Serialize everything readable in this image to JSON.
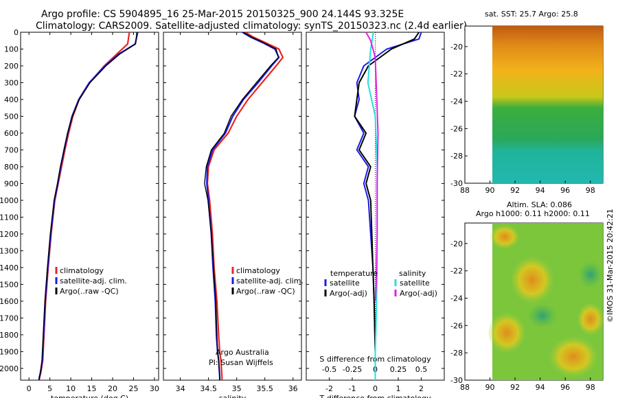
{
  "header": {
    "title_line1": "Argo profile: CS 5904895_16 25-Mar-2015 20150325_900 24.144S 93.325E",
    "title_line2": "Climatology: CARS2009. Satellite-adjusted climatology: synTS_20150323.nc (2.4d earlier)"
  },
  "panel_titles": {
    "sst": "sat. SST: 25.7 Argo: 25.8",
    "sla_line1": "Altim. SLA: 0.086",
    "sla_line2": "Argo h1000: 0.11 h2000: 0.11"
  },
  "credit": "©IMOS 31-Mar-2015 20:42:21",
  "colors": {
    "climatology": "#e8261c",
    "satellite": "#1a1ae6",
    "argo": "#000000",
    "sat_salinity": "#22e0e0",
    "argo_salinity": "#e020e0"
  },
  "chart_data": [
    {
      "type": "line",
      "xlabel": "temperature (deg C)",
      "ylabel": "",
      "xlim": [
        -2,
        31
      ],
      "ylim": [
        2070,
        0
      ],
      "xticks": [
        0,
        5,
        10,
        15,
        20,
        25,
        30
      ],
      "yticks": [
        0,
        100,
        200,
        300,
        400,
        500,
        600,
        700,
        800,
        900,
        1000,
        1100,
        1200,
        1300,
        1400,
        1500,
        1600,
        1700,
        1800,
        1900,
        2000
      ],
      "legend": [
        "climatology",
        "satellite-adj. clim.",
        "Argo(..raw -QC)"
      ],
      "series": [
        {
          "name": "climatology",
          "x": [
            24,
            23.6,
            21,
            18,
            14.5,
            12,
            10.5,
            9.5,
            8.6,
            7.8,
            7,
            6.2,
            5.3,
            4.6,
            4,
            3.6,
            3.3,
            3,
            2.8,
            2.6,
            2.4
          ],
          "y": [
            0,
            70,
            130,
            200,
            300,
            400,
            500,
            600,
            700,
            800,
            900,
            1000,
            1200,
            1400,
            1600,
            1800,
            1950,
            2000,
            2030,
            2050,
            2070
          ]
        },
        {
          "name": "satellite-adj. clim.",
          "x": [
            26,
            25.4,
            21.5,
            18.2,
            14.4,
            11.9,
            10.3,
            9.3,
            8.4,
            7.6,
            6.9,
            6.1,
            5.2,
            4.5,
            3.9,
            3.5,
            3.2,
            2.9,
            2.7,
            2.5,
            2.4
          ],
          "y": [
            0,
            70,
            130,
            200,
            300,
            400,
            500,
            600,
            700,
            800,
            900,
            1000,
            1200,
            1400,
            1600,
            1800,
            1950,
            2000,
            2030,
            2050,
            2070
          ]
        },
        {
          "name": "Argo(..raw -QC)",
          "x": [
            25.8,
            25.5,
            21.7,
            18.4,
            14.6,
            12,
            10.4,
            9.2,
            8.4,
            7.5,
            6.8,
            6,
            5.1,
            4.4,
            3.8,
            3.4,
            3.1,
            2.9,
            2.7,
            2.5,
            2.4
          ],
          "y": [
            0,
            70,
            130,
            200,
            300,
            400,
            500,
            600,
            700,
            800,
            900,
            1000,
            1200,
            1400,
            1600,
            1800,
            1950,
            2000,
            2030,
            2050,
            2070
          ]
        }
      ]
    },
    {
      "type": "line",
      "xlabel": "salinity",
      "ylabel": "",
      "xlim": [
        33.7,
        36.15
      ],
      "ylim": [
        2070,
        0
      ],
      "xticks": [
        34,
        34.5,
        35,
        35.5,
        36
      ],
      "legend": [
        "climatology",
        "satellite-adj. clim.",
        "Argo(..raw -QC)"
      ],
      "annotation": [
        "Argo Australia",
        "PI: Susan Wijffels"
      ],
      "series": [
        {
          "name": "climatology",
          "x": [
            35.15,
            35.3,
            35.5,
            35.75,
            35.82,
            35.7,
            35.45,
            35.2,
            35,
            34.85,
            34.6,
            34.5,
            34.48,
            34.52,
            34.57,
            34.6,
            34.65,
            34.68,
            34.7,
            34.72,
            34.73,
            34.74,
            34.74
          ],
          "y": [
            0,
            30,
            60,
            100,
            150,
            200,
            300,
            400,
            500,
            600,
            700,
            800,
            900,
            1000,
            1200,
            1400,
            1600,
            1800,
            1900,
            1950,
            2000,
            2050,
            2070
          ]
        },
        {
          "name": "satellite-adj. clim.",
          "x": [
            35.1,
            35.25,
            35.45,
            35.68,
            35.75,
            35.62,
            35.38,
            35.12,
            34.93,
            34.8,
            34.57,
            34.48,
            34.47,
            34.5,
            34.55,
            34.58,
            34.62,
            34.64,
            34.66,
            34.68,
            34.69,
            34.7,
            34.7
          ],
          "y": [
            0,
            30,
            60,
            100,
            150,
            200,
            300,
            400,
            500,
            600,
            700,
            800,
            900,
            1000,
            1200,
            1400,
            1600,
            1800,
            1900,
            1950,
            2000,
            2050,
            2070
          ]
        },
        {
          "name": "Argo(..raw -QC)",
          "x": [
            35.12,
            35.27,
            35.47,
            35.7,
            35.74,
            35.6,
            35.35,
            35.1,
            34.9,
            34.78,
            34.55,
            34.46,
            34.43,
            34.49,
            34.55,
            34.59,
            34.63,
            34.65,
            34.66,
            34.68,
            34.69,
            34.7,
            34.7
          ],
          "y": [
            0,
            30,
            60,
            100,
            150,
            200,
            300,
            400,
            500,
            600,
            700,
            800,
            900,
            1000,
            1200,
            1400,
            1600,
            1800,
            1900,
            1950,
            2000,
            2050,
            2070
          ]
        }
      ]
    },
    {
      "type": "line",
      "xlabel": "T difference from climatology",
      "x2label": "S difference from climatology",
      "xlim": [
        -3,
        3
      ],
      "ylim": [
        2070,
        0
      ],
      "xticks": [
        -2,
        -1,
        0,
        1,
        2
      ],
      "x2ticks": [
        "-0.5",
        "-0.25",
        "0",
        "0.25",
        "0.5"
      ],
      "legend_temperature": [
        "temperature",
        "satellite",
        "Argo(-adj)"
      ],
      "legend_salinity": [
        "salinity",
        "satellite",
        "Argo(-adj)"
      ],
      "series": [
        {
          "name": "satellite",
          "group": "temperature",
          "x": [
            2,
            1.9,
            0.5,
            -0.5,
            -0.8,
            -0.7,
            -0.9,
            -0.5,
            -0.8,
            -0.3,
            -0.5,
            -0.3,
            -0.2,
            -0.1,
            -0.05,
            0,
            0
          ],
          "y": [
            0,
            40,
            100,
            200,
            300,
            400,
            500,
            600,
            700,
            800,
            900,
            1000,
            1200,
            1400,
            1600,
            1900,
            2070
          ]
        },
        {
          "name": "Argo(-adj)",
          "group": "temperature",
          "x": [
            1.9,
            1.7,
            0.7,
            -0.3,
            -0.7,
            -0.8,
            -0.9,
            -0.4,
            -0.7,
            -0.2,
            -0.4,
            -0.2,
            -0.15,
            -0.1,
            -0.05,
            0,
            0
          ],
          "y": [
            0,
            40,
            100,
            200,
            300,
            400,
            500,
            600,
            700,
            800,
            900,
            1000,
            1200,
            1400,
            1600,
            1900,
            2070
          ]
        },
        {
          "name": "satellite",
          "group": "salinity",
          "x": [
            -0.02,
            -0.05,
            -0.08,
            0,
            0.02,
            0.02,
            0.02,
            0.01,
            0,
            0
          ],
          "y": [
            0,
            100,
            300,
            500,
            800,
            1000,
            1400,
            1700,
            1900,
            2070
          ]
        },
        {
          "name": "Argo(-adj)",
          "group": "salinity",
          "x": [
            -0.1,
            -0.05,
            0,
            0.03,
            0.02,
            0.02,
            0.01,
            0
          ],
          "y": [
            0,
            50,
            150,
            600,
            900,
            1200,
            1500,
            1600
          ]
        }
      ]
    },
    {
      "type": "heatmap",
      "title": "sat. SST: 25.7 Argo: 25.8",
      "xlim": [
        88,
        99
      ],
      "ylim": [
        -30,
        -18.5
      ],
      "xticks": [
        88,
        90,
        92,
        94,
        96,
        98
      ],
      "yticks": [
        -20,
        -22,
        -24,
        -26,
        -28,
        -30
      ]
    },
    {
      "type": "heatmap",
      "title": "Altim. SLA: 0.086 / Argo h1000: 0.11 h2000: 0.11",
      "xlim": [
        88,
        99
      ],
      "ylim": [
        -30,
        -18.5
      ],
      "xticks": [
        88,
        90,
        92,
        94,
        96,
        98
      ],
      "yticks": [
        -20,
        -22,
        -24,
        -26,
        -28,
        -30
      ]
    }
  ]
}
